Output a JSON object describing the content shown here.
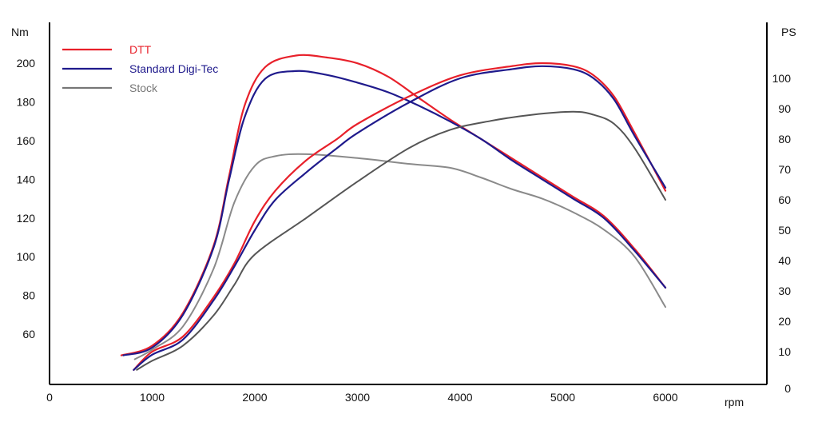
{
  "chart_data": {
    "type": "line",
    "title": "",
    "xlabel": "rpm",
    "ylabel_left": "Nm",
    "ylabel_right": "PS",
    "xlim": [
      0,
      7000
    ],
    "ylim_left": [
      40,
      210
    ],
    "ylim_right": [
      0,
      115
    ],
    "x_ticks": [
      0,
      1000,
      2000,
      3000,
      4000,
      5000,
      6000
    ],
    "y_ticks_left": [
      60,
      80,
      100,
      120,
      140,
      160,
      180,
      200
    ],
    "y_ticks_right": [
      0,
      10,
      20,
      30,
      40,
      50,
      60,
      70,
      80,
      90,
      100
    ],
    "grid": false,
    "legend_position": "top-left",
    "legend": [
      {
        "name": "DTT",
        "color": "#e8202a"
      },
      {
        "name": "Standard Digi-Tec",
        "color": "#1f1a8c"
      },
      {
        "name": "Stock",
        "color": "#777777"
      }
    ],
    "series": [
      {
        "name": "DTT",
        "quantity": "torque",
        "axis": "left",
        "color": "#e8202a",
        "width": 2.2,
        "x": [
          700,
          1000,
          1300,
          1600,
          1750,
          1900,
          2100,
          2400,
          2700,
          3000,
          3300,
          3600,
          3900,
          4200,
          4500,
          4800,
          5100,
          5400,
          5700,
          6000
        ],
        "y": [
          49,
          54,
          71,
          106,
          142,
          178,
          198,
          204,
          203,
          200,
          193,
          182,
          171,
          161,
          151,
          141,
          131,
          121,
          104,
          84
        ]
      },
      {
        "name": "Standard Digi-Tec",
        "quantity": "torque",
        "axis": "left",
        "color": "#1f1a8c",
        "width": 2.2,
        "x": [
          720,
          1000,
          1300,
          1600,
          1750,
          1900,
          2100,
          2400,
          2700,
          3000,
          3300,
          3600,
          3900,
          4200,
          4500,
          4800,
          5100,
          5400,
          5700,
          6000
        ],
        "y": [
          49,
          53,
          70,
          105,
          140,
          172,
          192,
          196,
          194,
          190,
          185,
          178,
          170,
          161,
          150,
          140,
          130,
          120,
          103,
          84
        ]
      },
      {
        "name": "Stock",
        "quantity": "torque",
        "axis": "left",
        "color": "#8a8a8a",
        "width": 2,
        "x": [
          830,
          1000,
          1300,
          1600,
          1800,
          2000,
          2200,
          2500,
          3000,
          3500,
          3900,
          4200,
          4500,
          4800,
          5100,
          5400,
          5700,
          6000
        ],
        "y": [
          47,
          52,
          64,
          94,
          128,
          147,
          152,
          153,
          151,
          148,
          146,
          141,
          135,
          130,
          123,
          114,
          100,
          74
        ]
      },
      {
        "name": "DTT",
        "quantity": "power",
        "axis": "right",
        "color": "#e8202a",
        "width": 2.2,
        "x": [
          820,
          1000,
          1300,
          1600,
          1800,
          2000,
          2200,
          2500,
          2800,
          3000,
          3500,
          4000,
          4500,
          4800,
          5100,
          5300,
          5500,
          5700,
          6000
        ],
        "y": [
          4,
          10,
          15,
          28,
          39,
          53,
          63,
          73,
          80,
          85,
          94,
          101,
          104,
          105,
          104,
          101,
          94,
          82,
          63
        ]
      },
      {
        "name": "Standard Digi-Tec",
        "quantity": "power",
        "axis": "right",
        "color": "#1f1a8c",
        "width": 2.2,
        "x": [
          820,
          1000,
          1300,
          1600,
          1800,
          2000,
          2200,
          2500,
          2800,
          3000,
          3500,
          4000,
          4500,
          4800,
          5100,
          5300,
          5500,
          5700,
          6000
        ],
        "y": [
          4,
          9,
          14,
          27,
          38,
          50,
          60,
          69,
          77,
          82,
          92,
          100,
          103,
          104,
          103,
          100,
          93,
          81,
          64
        ]
      },
      {
        "name": "Stock",
        "quantity": "power",
        "axis": "right",
        "color": "#555555",
        "width": 2,
        "x": [
          850,
          1000,
          1300,
          1600,
          1800,
          2000,
          2500,
          3000,
          3500,
          3900,
          4300,
          4700,
          5100,
          5300,
          5500,
          5700,
          6000
        ],
        "y": [
          4,
          7,
          12,
          22,
          32,
          42,
          54,
          66,
          77,
          83,
          86,
          88,
          89,
          88,
          85,
          77,
          60
        ]
      }
    ]
  }
}
